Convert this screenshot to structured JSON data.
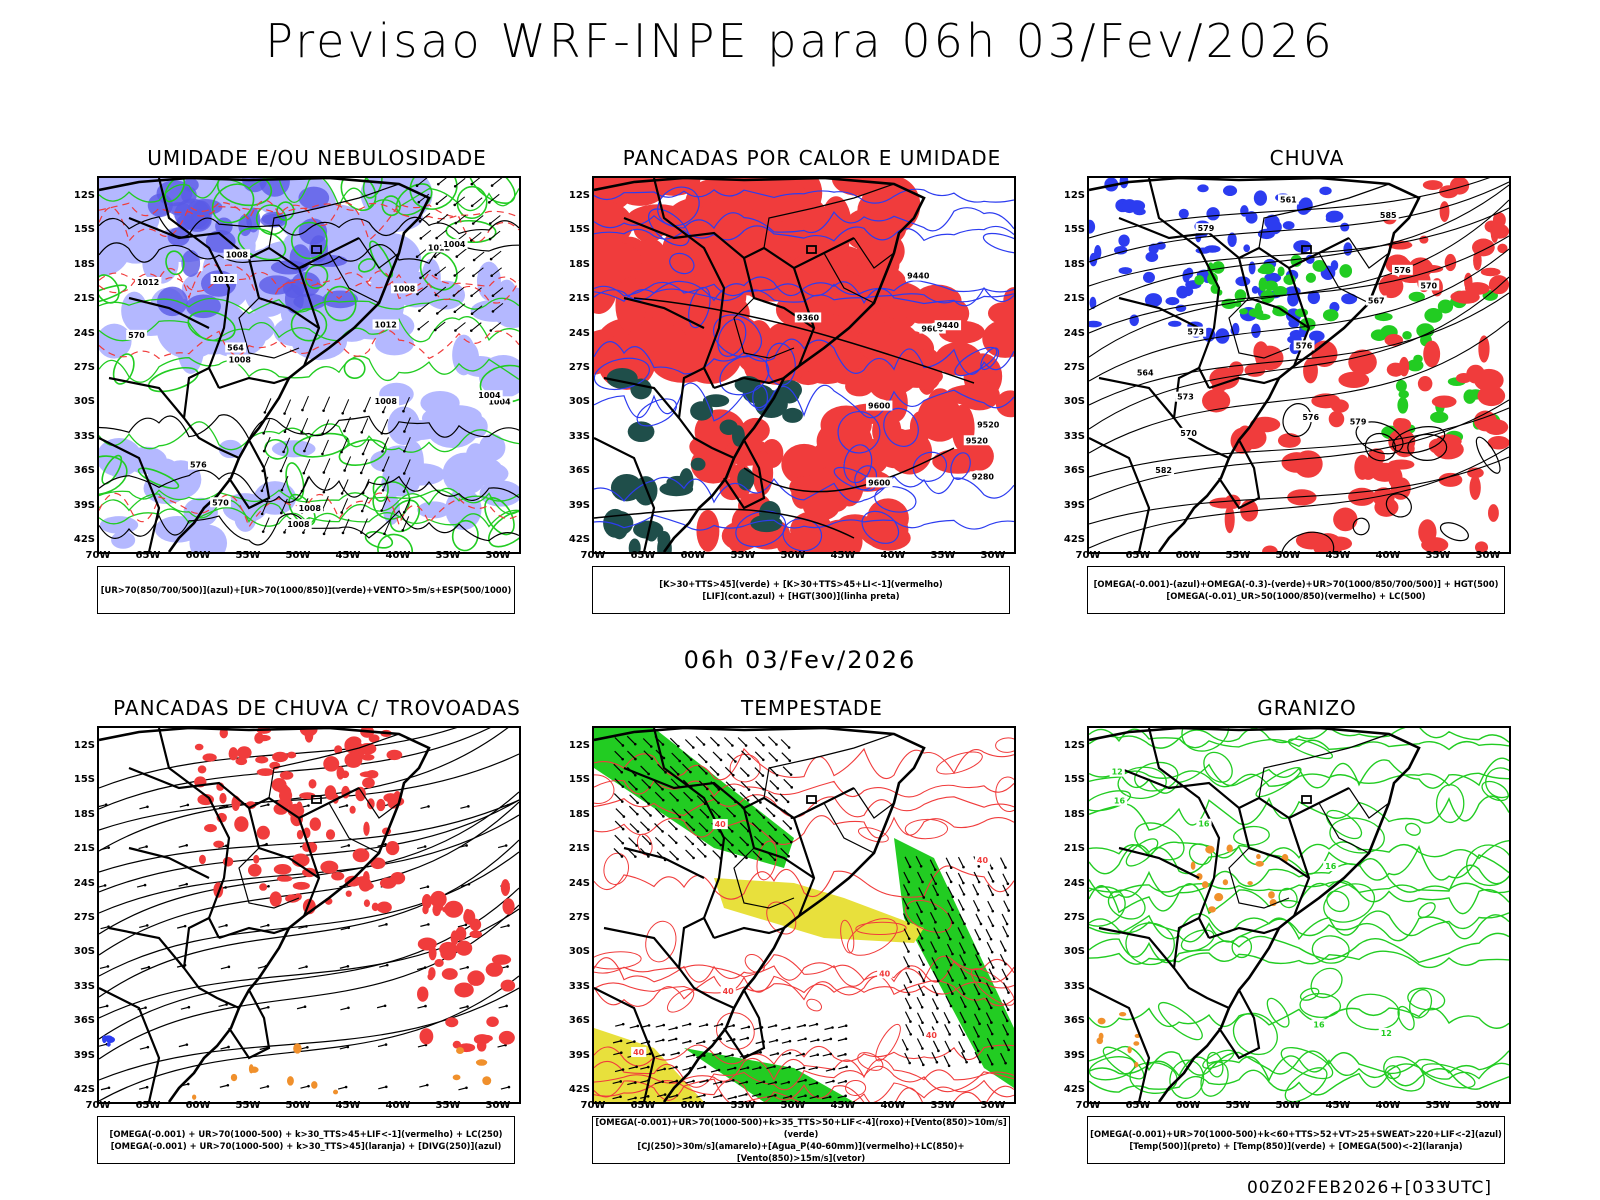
{
  "title": "Previsao WRF-INPE  para 06h 03/Fev/2026",
  "mid_date": "06h 03/Fev/2026",
  "run_stamp": "00Z02FEB2026+[033UTC]",
  "lat_labels": [
    "12S",
    "15S",
    "18S",
    "21S",
    "24S",
    "27S",
    "30S",
    "33S",
    "36S",
    "39S",
    "42S"
  ],
  "lon_labels": [
    "70W",
    "65W",
    "60W",
    "55W",
    "50W",
    "45W",
    "40W",
    "35W",
    "30W"
  ],
  "colors": {
    "blue": "#2c3cf0",
    "light_blue": "#b4b8ff",
    "green": "#22cc22",
    "red": "#f03c3c",
    "dark_teal": "#1f4e4a",
    "yellow": "#e8e03c",
    "orange": "#f0902c"
  },
  "panels": [
    {
      "id": "umidade",
      "title": "UMIDADE E/OU NEBULOSIDADE",
      "legend": [
        "[UR>70(850/700/500)](azul)+[UR>70(1000/850)](verde)+VENTO>5m/s+ESP(500/1000)"
      ],
      "labels": [
        "1012",
        "1012",
        "1012",
        "1008",
        "1012",
        "1008",
        "1008",
        "1008",
        "1004",
        "1004",
        "1004",
        "1008",
        "1008",
        "576",
        "570",
        "570",
        "564"
      ]
    },
    {
      "id": "pancadas-calor",
      "title": "PANCADAS POR CALOR E UMIDADE",
      "legend": [
        "[K>30+TTS>45](verde) + [K>30+TTS>45+LI<-1](vermelho)",
        "[LIF](cont.azul) + [HGT(300)](linha preta)"
      ],
      "labels": [
        "9600",
        "9520",
        "9600",
        "9520",
        "9600",
        "9440",
        "9440",
        "9360",
        "9280"
      ]
    },
    {
      "id": "chuva",
      "title": "CHUVA",
      "legend": [
        "[OMEGA(-0.001)-(azul)+OMEGA(-0.3)-(verde)+UR>70(1000/850/700/500)] + HGT(500)",
        "[OMEGA(-0.01)_UR>50(1000/850)(vermelho) + LC(500)"
      ],
      "labels": [
        "582",
        "585",
        "579",
        "576",
        "576",
        "573",
        "573",
        "570",
        "570",
        "567",
        "564",
        "561",
        "579",
        "576"
      ]
    },
    {
      "id": "trovoadas",
      "title": "PANCADAS DE CHUVA C/ TROVOADAS",
      "legend": [
        "[OMEGA(-0.001) + UR>70(1000-500) + k>30_TTS>45+LIF<-1](vermelho) + LC(250)",
        "[OMEGA(-0.001) + UR>70(1000-500) + k>30_TTS>45](laranja) + [DIVG(250)](azul)"
      ],
      "labels": []
    },
    {
      "id": "tempestade",
      "title": "TEMPESTADE",
      "legend": [
        "[OMEGA(-0.001)+UR>70(1000-500)+k>35_TTS>50+LIF<-4](roxo)+[Vento(850)>10m/s](verde)",
        "[CJ(250)>30m/s](amarelo)+[Agua_P(40-60mm)](vermelho)+LC(850)+[Vento(850)>15m/s](vetor)"
      ],
      "labels": [
        "40",
        "40",
        "40",
        "40",
        "40",
        "40"
      ]
    },
    {
      "id": "granizo",
      "title": "GRANIZO",
      "legend": [
        "[OMEGA(-0.001)+UR>70(1000-500)+k<60+TTS>52+VT>25+SWEAT>220+LIF<-2](azul)",
        "[Temp(500)](preto) + [Temp(850)](verde) + [OMEGA(500)<-2](laranja)"
      ],
      "labels": [
        "16",
        "12",
        "12",
        "16",
        "16",
        "16"
      ]
    }
  ]
}
